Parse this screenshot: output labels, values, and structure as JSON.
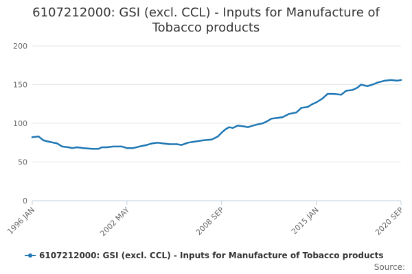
{
  "chart_data": {
    "type": "line",
    "title_lines": [
      "6107212000: GSI (excl. CCL) - Inputs for Manufacture of",
      "Tobacco products"
    ],
    "xlabel": "",
    "ylabel": "",
    "ylim": [
      0,
      200
    ],
    "yticks": [
      0,
      50,
      100,
      150,
      200
    ],
    "xlim": [
      "1996-01",
      "2020-09"
    ],
    "xticks": [
      {
        "label": "1996 JAN",
        "date": "1996-01"
      },
      {
        "label": "2002 MAY",
        "date": "2002-05"
      },
      {
        "label": "2008 SEP",
        "date": "2008-09"
      },
      {
        "label": "2015 JAN",
        "date": "2015-01"
      },
      {
        "label": "2020 SEP",
        "date": "2020-09"
      }
    ],
    "grid": true,
    "legend_position": "bottom",
    "source_label": "Source:",
    "series": [
      {
        "name": "6107212000: GSI (excl. CCL) - Inputs for Manufacture of Tobacco products",
        "color": "#1f77b4",
        "points": [
          [
            "1996-01",
            82
          ],
          [
            "1996-06",
            83
          ],
          [
            "1996-10",
            78
          ],
          [
            "1997-03",
            76
          ],
          [
            "1997-09",
            74
          ],
          [
            "1998-01",
            70
          ],
          [
            "1998-06",
            69
          ],
          [
            "1998-09",
            68
          ],
          [
            "1999-01",
            69
          ],
          [
            "1999-06",
            68
          ],
          [
            "2000-01",
            67
          ],
          [
            "2000-06",
            67
          ],
          [
            "2000-09",
            69
          ],
          [
            "2001-01",
            69
          ],
          [
            "2001-06",
            70
          ],
          [
            "2002-01",
            70
          ],
          [
            "2002-05",
            68
          ],
          [
            "2002-10",
            68
          ],
          [
            "2003-03",
            70
          ],
          [
            "2003-09",
            72
          ],
          [
            "2004-01",
            74
          ],
          [
            "2004-06",
            75
          ],
          [
            "2004-10",
            74
          ],
          [
            "2005-03",
            73
          ],
          [
            "2005-09",
            73
          ],
          [
            "2006-01",
            72
          ],
          [
            "2006-06",
            75
          ],
          [
            "2006-10",
            76
          ],
          [
            "2007-06",
            78
          ],
          [
            "2008-01",
            79
          ],
          [
            "2008-06",
            83
          ],
          [
            "2008-09",
            88
          ],
          [
            "2008-12",
            92
          ],
          [
            "2009-03",
            95
          ],
          [
            "2009-06",
            94
          ],
          [
            "2009-10",
            97
          ],
          [
            "2010-03",
            96
          ],
          [
            "2010-06",
            95
          ],
          [
            "2010-10",
            97
          ],
          [
            "2011-03",
            99
          ],
          [
            "2011-06",
            100
          ],
          [
            "2011-10",
            103
          ],
          [
            "2012-01",
            106
          ],
          [
            "2012-06",
            107
          ],
          [
            "2012-10",
            108
          ],
          [
            "2013-03",
            112
          ],
          [
            "2013-09",
            114
          ],
          [
            "2014-01",
            120
          ],
          [
            "2014-06",
            121
          ],
          [
            "2014-10",
            125
          ],
          [
            "2015-01",
            127
          ],
          [
            "2015-06",
            132
          ],
          [
            "2015-10",
            138
          ],
          [
            "2016-03",
            138
          ],
          [
            "2016-09",
            137
          ],
          [
            "2017-01",
            142
          ],
          [
            "2017-06",
            143
          ],
          [
            "2017-10",
            146
          ],
          [
            "2018-01",
            150
          ],
          [
            "2018-06",
            148
          ],
          [
            "2018-10",
            150
          ],
          [
            "2019-03",
            153
          ],
          [
            "2019-08",
            155
          ],
          [
            "2020-01",
            156
          ],
          [
            "2020-06",
            155
          ],
          [
            "2020-09",
            156
          ]
        ]
      }
    ]
  }
}
